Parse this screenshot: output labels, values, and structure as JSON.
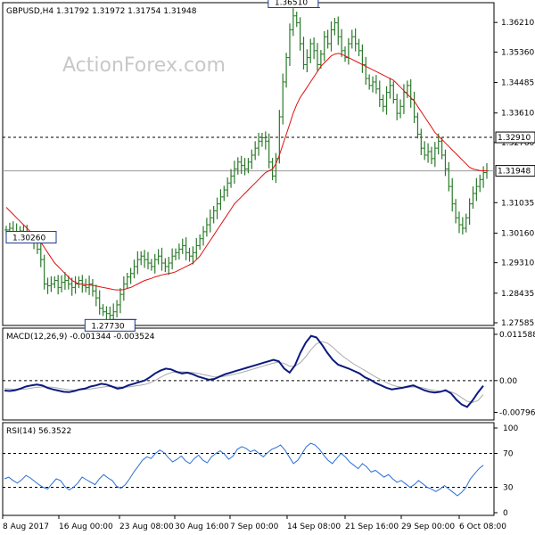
{
  "watermark": "ActionForex.com",
  "chart_data": [
    {
      "type": "candlestick",
      "title": "GBPUSD,H4  1.31792  1.31972  1.31754  1.31948",
      "y_ticks": [
        "1.36210",
        "1.35360",
        "1.34485",
        "1.33610",
        "1.32760",
        "1.31035",
        "1.30160",
        "1.29310",
        "1.28435",
        "1.27585"
      ],
      "ylim": [
        1.27585,
        1.3665
      ],
      "last_price": "1.31948",
      "horizontal_level": "1.32910",
      "annotations": [
        {
          "text": "1.36510",
          "value": 1.3651
        },
        {
          "text": "1.30260",
          "value": 1.3026
        },
        {
          "text": "1.27730",
          "value": 1.2773
        }
      ],
      "price_series": [
        1.3025,
        1.303,
        1.302,
        1.3015,
        1.3022,
        1.3018,
        1.301,
        1.3,
        1.299,
        1.297,
        1.294,
        1.287,
        1.2865,
        1.287,
        1.288,
        1.286,
        1.2875,
        1.288,
        1.287,
        1.286,
        1.287,
        1.288,
        1.2865,
        1.286,
        1.287,
        1.285,
        1.283,
        1.28,
        1.279,
        1.2785,
        1.278,
        1.279,
        1.281,
        1.284,
        1.287,
        1.289,
        1.29,
        1.292,
        1.294,
        1.295,
        1.294,
        1.293,
        1.292,
        1.294,
        1.295,
        1.293,
        1.292,
        1.293,
        1.295,
        1.296,
        1.297,
        1.298,
        1.296,
        1.295,
        1.296,
        1.298,
        1.3,
        1.302,
        1.304,
        1.306,
        1.308,
        1.31,
        1.312,
        1.314,
        1.316,
        1.318,
        1.32,
        1.322,
        1.321,
        1.32,
        1.322,
        1.324,
        1.326,
        1.328,
        1.329,
        1.328,
        1.322,
        1.318,
        1.323,
        1.335,
        1.345,
        1.352,
        1.36,
        1.364,
        1.362,
        1.356,
        1.35,
        1.352,
        1.356,
        1.354,
        1.35,
        1.353,
        1.358,
        1.356,
        1.36,
        1.362,
        1.358,
        1.354,
        1.352,
        1.356,
        1.358,
        1.356,
        1.354,
        1.35,
        1.346,
        1.344,
        1.345,
        1.343,
        1.34,
        1.338,
        1.342,
        1.344,
        1.34,
        1.336,
        1.338,
        1.342,
        1.344,
        1.34,
        1.335,
        1.33,
        1.326,
        1.324,
        1.325,
        1.323,
        1.326,
        1.328,
        1.324,
        1.32,
        1.315,
        1.31,
        1.306,
        1.304,
        1.303,
        1.306,
        1.31,
        1.313,
        1.315,
        1.317,
        1.319,
        1.3195
      ],
      "ma_series": [
        1.309,
        1.308,
        1.307,
        1.306,
        1.305,
        1.304,
        1.303,
        1.302,
        1.301,
        1.3,
        1.299,
        1.2975,
        1.296,
        1.2945,
        1.293,
        1.292,
        1.291,
        1.29,
        1.289,
        1.288,
        1.2875,
        1.287,
        1.287,
        1.2868,
        1.2867,
        1.2866,
        1.2864,
        1.2862,
        1.286,
        1.2858,
        1.2856,
        1.2854,
        1.2853,
        1.2853,
        1.2854,
        1.2857,
        1.286,
        1.2865,
        1.287,
        1.2875,
        1.288,
        1.2883,
        1.2886,
        1.289,
        1.2893,
        1.2896,
        1.2898,
        1.29,
        1.2902,
        1.2905,
        1.291,
        1.2915,
        1.292,
        1.2925,
        1.293,
        1.294,
        1.295,
        1.2965,
        1.298,
        1.2995,
        1.301,
        1.3025,
        1.304,
        1.3055,
        1.307,
        1.3085,
        1.31,
        1.311,
        1.312,
        1.313,
        1.314,
        1.315,
        1.316,
        1.317,
        1.318,
        1.319,
        1.3195,
        1.32,
        1.3215,
        1.324,
        1.327,
        1.33,
        1.333,
        1.336,
        1.3385,
        1.3405,
        1.342,
        1.3435,
        1.345,
        1.3465,
        1.348,
        1.3495,
        1.3505,
        1.3515,
        1.3525,
        1.353,
        1.3532,
        1.353,
        1.3525,
        1.352,
        1.3515,
        1.351,
        1.3505,
        1.35,
        1.3495,
        1.349,
        1.3485,
        1.348,
        1.3475,
        1.347,
        1.3465,
        1.346,
        1.3455,
        1.3445,
        1.3435,
        1.3425,
        1.3415,
        1.3405,
        1.3395,
        1.338,
        1.3365,
        1.335,
        1.3335,
        1.332,
        1.3305,
        1.3295,
        1.3285,
        1.3275,
        1.3265,
        1.3255,
        1.3245,
        1.3235,
        1.3225,
        1.3215,
        1.3205,
        1.32,
        1.3198,
        1.3196,
        1.3195,
        1.3195
      ]
    },
    {
      "type": "line",
      "title": "MACD(12,26,9) -0.001344 -0.003524",
      "y_ticks": [
        "0.011588",
        "0.00",
        "-0.007961"
      ],
      "ylim": [
        -0.0092,
        0.0118
      ],
      "zero_line": 0,
      "macd_series": [
        -0.0025,
        -0.0026,
        -0.0024,
        -0.002,
        -0.0015,
        -0.0012,
        -0.001,
        -0.0012,
        -0.0018,
        -0.0022,
        -0.0025,
        -0.0028,
        -0.0029,
        -0.0026,
        -0.0022,
        -0.002,
        -0.0015,
        -0.0012,
        -0.0008,
        -0.001,
        -0.0015,
        -0.002,
        -0.0018,
        -0.0012,
        -0.0008,
        -0.0004,
        0.0,
        0.0008,
        0.0018,
        0.0025,
        0.003,
        0.0028,
        0.0022,
        0.0018,
        0.002,
        0.0016,
        0.001,
        0.0006,
        0.0002,
        0.0004,
        0.001,
        0.0016,
        0.002,
        0.0024,
        0.0028,
        0.0032,
        0.0036,
        0.004,
        0.0044,
        0.0048,
        0.0052,
        0.0048,
        0.003,
        0.002,
        0.0038,
        0.007,
        0.0095,
        0.0112,
        0.0108,
        0.009,
        0.007,
        0.0052,
        0.004,
        0.0035,
        0.003,
        0.0024,
        0.0018,
        0.0008,
        0.0002,
        -0.0006,
        -0.0012,
        -0.0018,
        -0.0022,
        -0.002,
        -0.0018,
        -0.0015,
        -0.0012,
        -0.0018,
        -0.0024,
        -0.0028,
        -0.003,
        -0.0028,
        -0.0024,
        -0.0032,
        -0.0048,
        -0.006,
        -0.0066,
        -0.005,
        -0.003,
        -0.0013
      ],
      "signal_series": [
        -0.002,
        -0.0021,
        -0.0022,
        -0.0022,
        -0.0021,
        -0.0019,
        -0.0017,
        -0.0016,
        -0.0016,
        -0.0017,
        -0.0019,
        -0.0021,
        -0.0023,
        -0.0024,
        -0.0023,
        -0.0022,
        -0.0021,
        -0.0019,
        -0.0017,
        -0.0015,
        -0.0015,
        -0.0016,
        -0.0016,
        -0.0016,
        -0.0014,
        -0.0012,
        -0.001,
        -0.0006,
        0.0,
        0.0008,
        0.0015,
        0.002,
        0.0022,
        0.0022,
        0.0021,
        0.002,
        0.0018,
        0.0015,
        0.0012,
        0.0009,
        0.0009,
        0.0011,
        0.0014,
        0.0017,
        0.002,
        0.0024,
        0.0028,
        0.0032,
        0.0036,
        0.004,
        0.0044,
        0.0046,
        0.0043,
        0.0036,
        0.0036,
        0.0045,
        0.006,
        0.0078,
        0.0092,
        0.0098,
        0.0094,
        0.0084,
        0.0071,
        0.006,
        0.005,
        0.0041,
        0.0033,
        0.0025,
        0.0017,
        0.0009,
        0.0002,
        -0.0005,
        -0.0011,
        -0.0015,
        -0.0017,
        -0.0017,
        -0.0016,
        -0.0016,
        -0.0019,
        -0.0022,
        -0.0025,
        -0.0027,
        -0.0027,
        -0.0028,
        -0.0034,
        -0.0043,
        -0.0052,
        -0.0055,
        -0.005,
        -0.0035
      ]
    },
    {
      "type": "line",
      "title": "RSI(14) 56.3522",
      "y_ticks": [
        "100",
        "70",
        "30",
        "0"
      ],
      "ylim": [
        0,
        100
      ],
      "levels": [
        70,
        30
      ],
      "rsi_series": [
        40,
        42,
        38,
        35,
        39,
        44,
        41,
        37,
        33,
        30,
        28,
        34,
        40,
        38,
        31,
        27,
        30,
        35,
        42,
        39,
        36,
        33,
        40,
        45,
        41,
        38,
        31,
        29,
        33,
        40,
        48,
        55,
        62,
        66,
        64,
        70,
        74,
        71,
        65,
        60,
        63,
        67,
        61,
        58,
        64,
        68,
        62,
        59,
        66,
        70,
        73,
        69,
        63,
        67,
        75,
        78,
        76,
        72,
        74,
        70,
        66,
        71,
        75,
        77,
        80,
        74,
        66,
        58,
        62,
        70,
        78,
        82,
        80,
        75,
        68,
        62,
        58,
        64,
        70,
        66,
        60,
        56,
        52,
        58,
        54,
        48,
        50,
        46,
        42,
        45,
        40,
        36,
        38,
        34,
        30,
        33,
        38,
        34,
        30,
        28,
        25,
        28,
        32,
        28,
        24,
        20,
        24,
        30,
        40,
        46,
        52,
        56
      ]
    }
  ],
  "x_ticks": [
    "8 Aug 2017",
    "16 Aug 00:00",
    "23 Aug 08:00",
    "30 Aug 16:00",
    "7 Sep 00:00",
    "14 Sep 08:00",
    "21 Sep 16:00",
    "29 Sep 00:00",
    "6 Oct 08:00"
  ]
}
